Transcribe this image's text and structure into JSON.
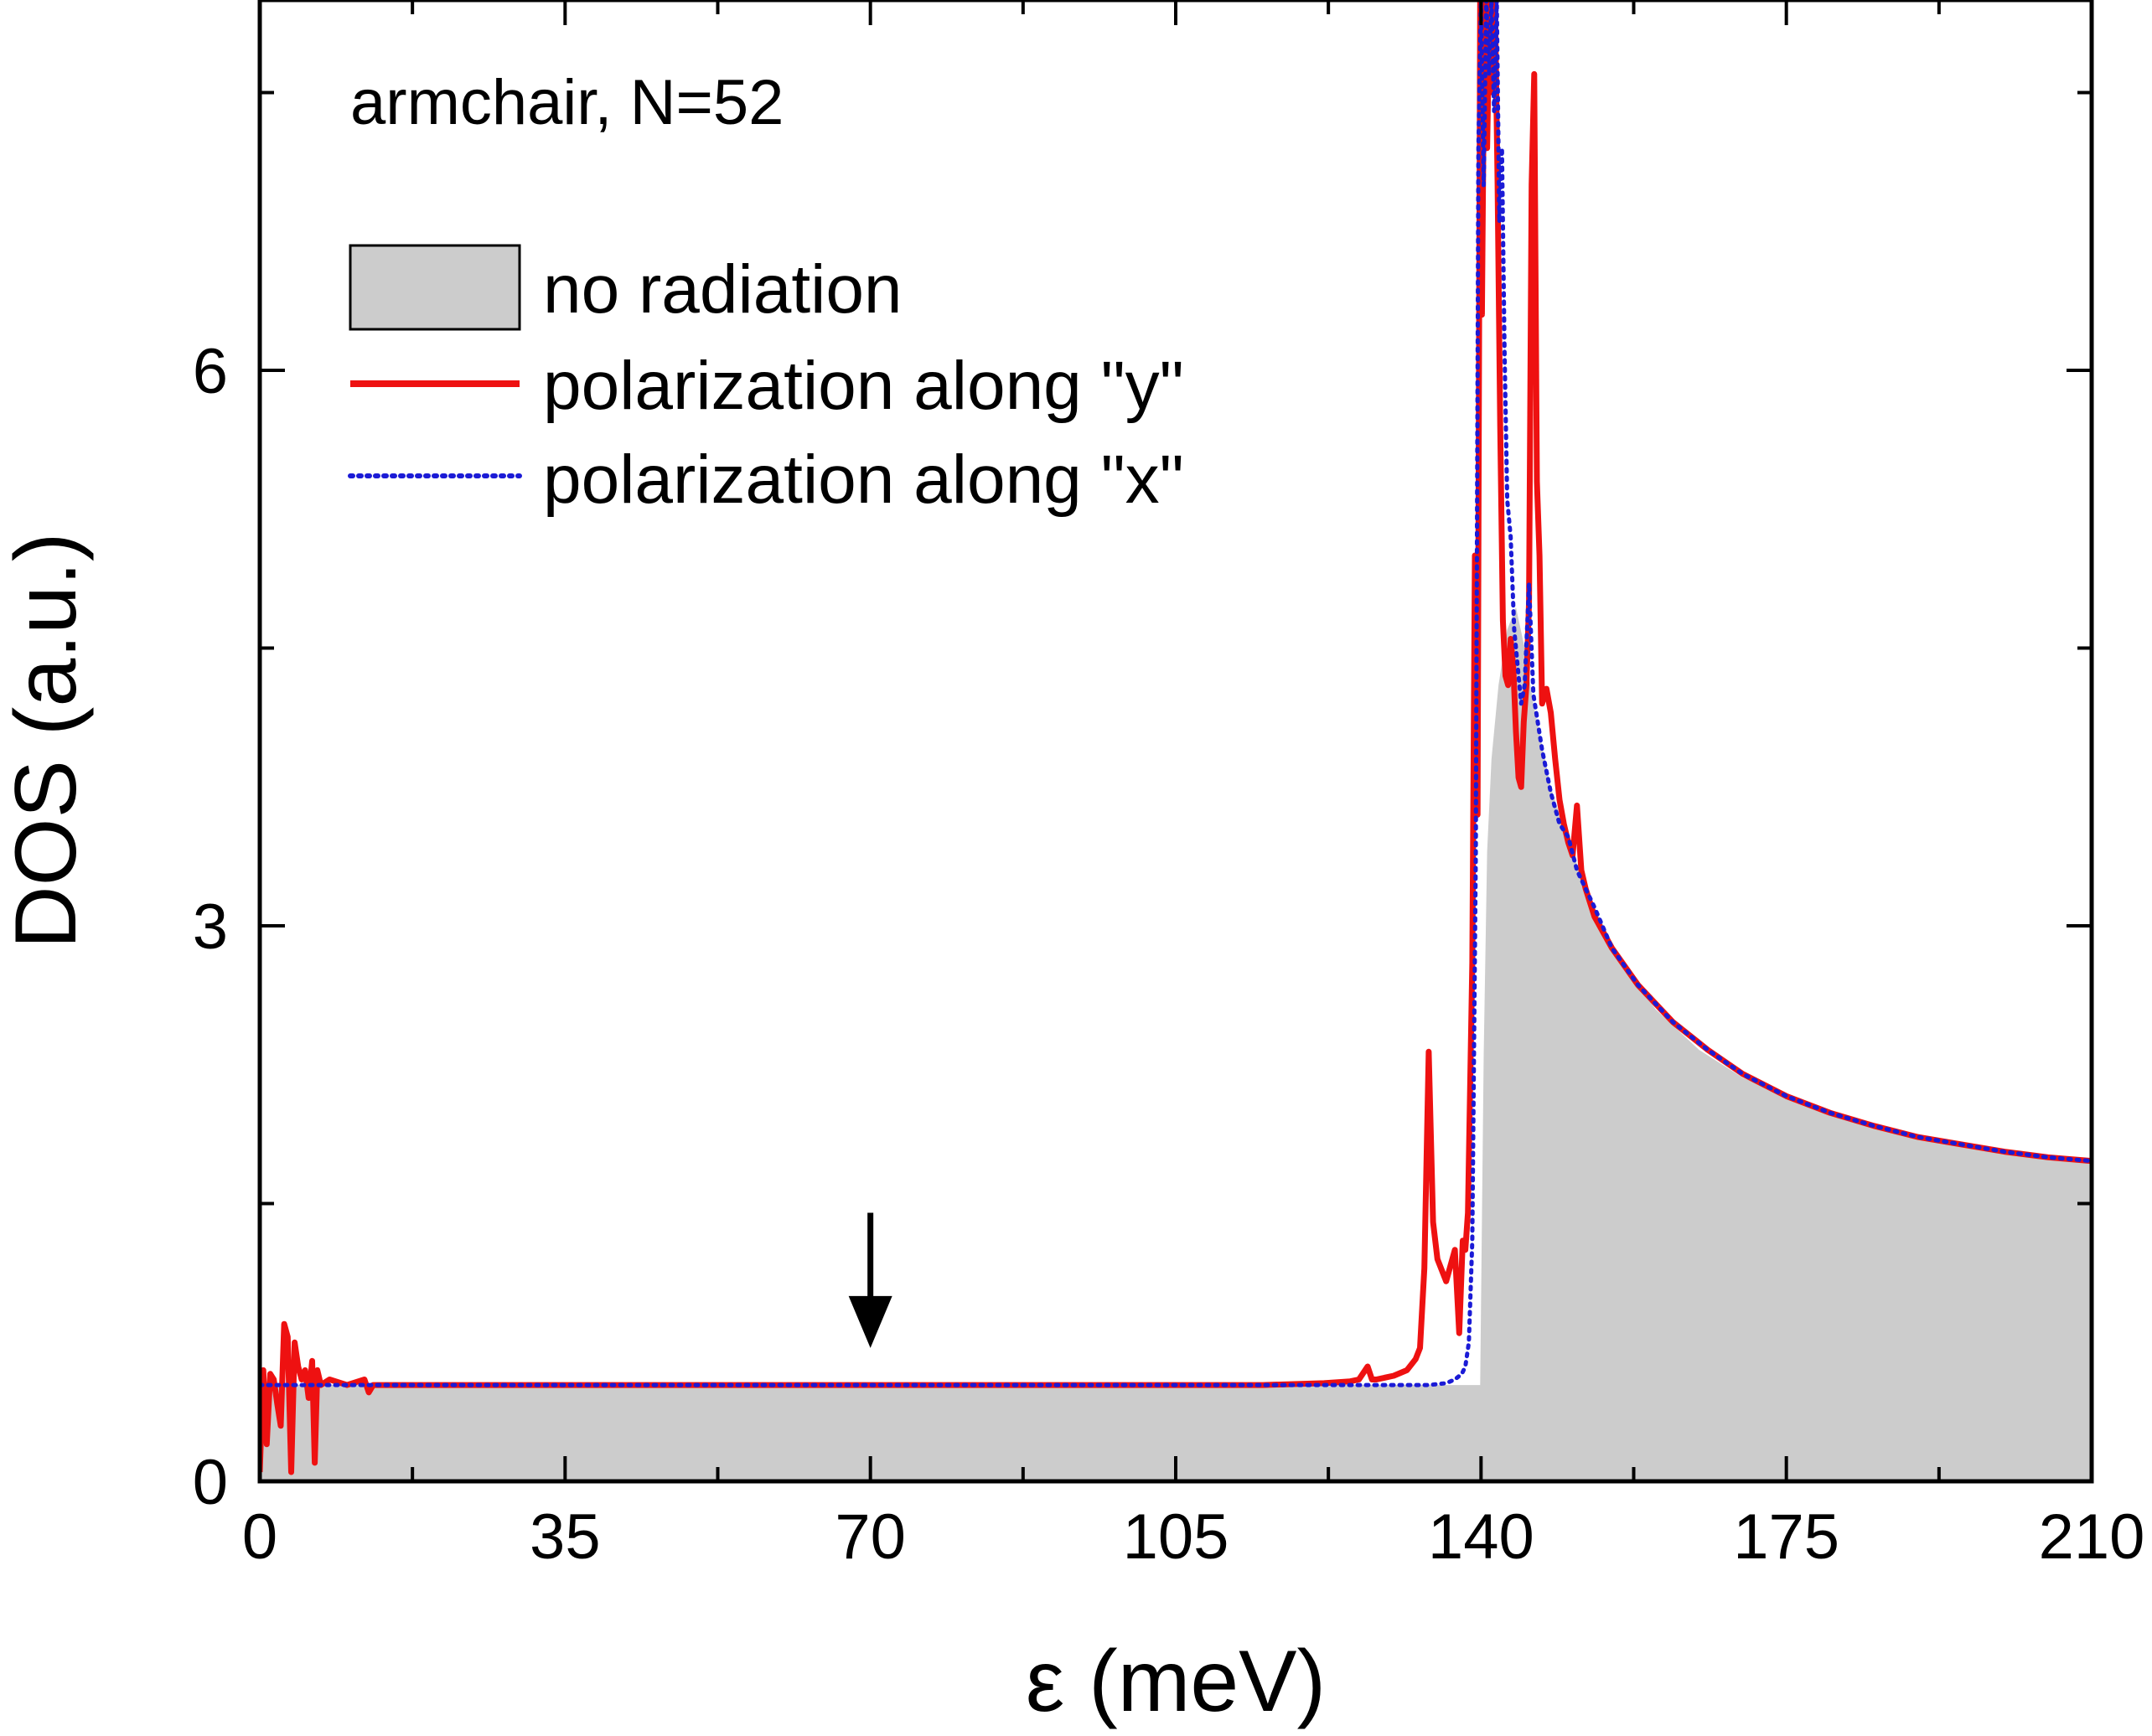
{
  "chart_data": {
    "type": "line",
    "title": "",
    "annotation": "armchair, N=52",
    "xlabel": "ε (meV)",
    "ylabel": "DOS (a.u.)",
    "xlim": [
      0,
      210
    ],
    "ylim": [
      0,
      8
    ],
    "xticks": [
      0,
      35,
      70,
      105,
      140,
      175,
      210
    ],
    "xtick_labels": [
      "0",
      "35",
      "70",
      "105",
      "140",
      "175",
      "210"
    ],
    "yticks": [
      0,
      3,
      6
    ],
    "ytick_labels": [
      "0",
      "3",
      "6"
    ],
    "legend_position": "top-left",
    "arrow_marker": {
      "x": 70,
      "y_from": 1.45,
      "y_to": 0.72
    },
    "colors": {
      "no_radiation_fill": "#cccccc",
      "polarization_y": "#ee1111",
      "polarization_x": "#1b1bd6"
    },
    "series": [
      {
        "name": "no radiation",
        "style": "filled-area",
        "x": [
          0,
          139.9,
          140.3,
          140.7,
          141.2,
          142,
          143,
          144,
          145,
          146,
          148,
          150,
          153,
          156,
          160,
          165,
          170,
          175,
          180,
          185,
          190,
          195,
          200,
          205,
          210
        ],
        "y": [
          0.52,
          0.52,
          2.3,
          3.4,
          3.9,
          4.3,
          4.6,
          4.72,
          4.5,
          4.2,
          3.75,
          3.45,
          3.1,
          2.82,
          2.55,
          2.33,
          2.18,
          2.08,
          1.99,
          1.92,
          1.86,
          1.82,
          1.78,
          1.75,
          1.73
        ]
      },
      {
        "name": "polarization along \"y\"",
        "style": "solid",
        "x": [
          0,
          0.4,
          0.8,
          1.2,
          1.6,
          2.0,
          2.4,
          2.8,
          3.2,
          3.6,
          4.0,
          4.4,
          4.8,
          5.2,
          5.6,
          6.0,
          6.3,
          6.6,
          7.0,
          8.0,
          10,
          12,
          12.5,
          13,
          20,
          40,
          60,
          70,
          80,
          100,
          115,
          122,
          125,
          126,
          127,
          127.5,
          128,
          130,
          131.5,
          132.5,
          133,
          133.5,
          134,
          134.5,
          135,
          136,
          137,
          137.5,
          137.9,
          138.2,
          138.5,
          139,
          139.3,
          139.6,
          139.9,
          140.1,
          140.4,
          140.7,
          141,
          141.3,
          141.6,
          141.9,
          142.2,
          142.5,
          142.8,
          143.1,
          143.4,
          143.7,
          144,
          144.3,
          144.6,
          144.9,
          145.2,
          145.5,
          145.8,
          146.1,
          146.4,
          146.7,
          147,
          147.5,
          148,
          148.5,
          149,
          149.5,
          150,
          150.5,
          151,
          151.5,
          152,
          153,
          155,
          158,
          162,
          166,
          170,
          175,
          180,
          185,
          190,
          195,
          200,
          205,
          210
        ],
        "y": [
          0.05,
          0.6,
          0.2,
          0.58,
          0.55,
          0.42,
          0.3,
          0.85,
          0.78,
          0.05,
          0.75,
          0.62,
          0.55,
          0.6,
          0.45,
          0.65,
          0.1,
          0.6,
          0.52,
          0.55,
          0.52,
          0.55,
          0.48,
          0.52,
          0.52,
          0.52,
          0.52,
          0.52,
          0.52,
          0.52,
          0.52,
          0.53,
          0.54,
          0.55,
          0.62,
          0.55,
          0.55,
          0.57,
          0.6,
          0.66,
          0.72,
          1.15,
          2.32,
          1.4,
          1.2,
          1.08,
          1.25,
          0.8,
          1.3,
          1.25,
          1.45,
          2.8,
          5.0,
          3.6,
          8.0,
          6.3,
          8.0,
          7.2,
          8.0,
          7.5,
          8.0,
          7.0,
          5.7,
          4.65,
          4.35,
          4.3,
          4.55,
          4.4,
          4.05,
          3.8,
          3.75,
          4.1,
          4.3,
          4.75,
          7.0,
          7.6,
          5.4,
          5.0,
          4.2,
          4.28,
          4.15,
          3.9,
          3.68,
          3.55,
          3.45,
          3.38,
          3.65,
          3.3,
          3.2,
          3.05,
          2.88,
          2.68,
          2.48,
          2.33,
          2.2,
          2.08,
          1.99,
          1.92,
          1.86,
          1.82,
          1.78,
          1.75,
          1.73
        ]
      },
      {
        "name": "polarization along \"x\"",
        "style": "dotted",
        "x": [
          0,
          50,
          100,
          120,
          130,
          134,
          136,
          137,
          137.8,
          138.2,
          138.6,
          139,
          139.4,
          139.7,
          140,
          140.3,
          140.6,
          140.9,
          141.2,
          141.5,
          141.8,
          142.1,
          142.4,
          142.7,
          143,
          143.4,
          143.8,
          144.2,
          144.6,
          145,
          145.5,
          146,
          146.5,
          147,
          148,
          149,
          150,
          151,
          152,
          153,
          155,
          158,
          162,
          166,
          170,
          175,
          180,
          185,
          190,
          195,
          200,
          205,
          210
        ],
        "y": [
          0.52,
          0.52,
          0.52,
          0.52,
          0.52,
          0.52,
          0.53,
          0.55,
          0.58,
          0.62,
          0.75,
          1.3,
          3.4,
          7.2,
          8.0,
          7.0,
          8.0,
          7.6,
          8.0,
          7.4,
          8.0,
          6.8,
          7.2,
          6.1,
          5.3,
          5.1,
          4.6,
          4.4,
          4.2,
          4.3,
          4.85,
          4.25,
          4.1,
          3.95,
          3.72,
          3.55,
          3.48,
          3.3,
          3.2,
          3.1,
          2.88,
          2.68,
          2.48,
          2.33,
          2.2,
          2.08,
          1.99,
          1.92,
          1.86,
          1.82,
          1.78,
          1.75,
          1.73
        ]
      }
    ]
  }
}
